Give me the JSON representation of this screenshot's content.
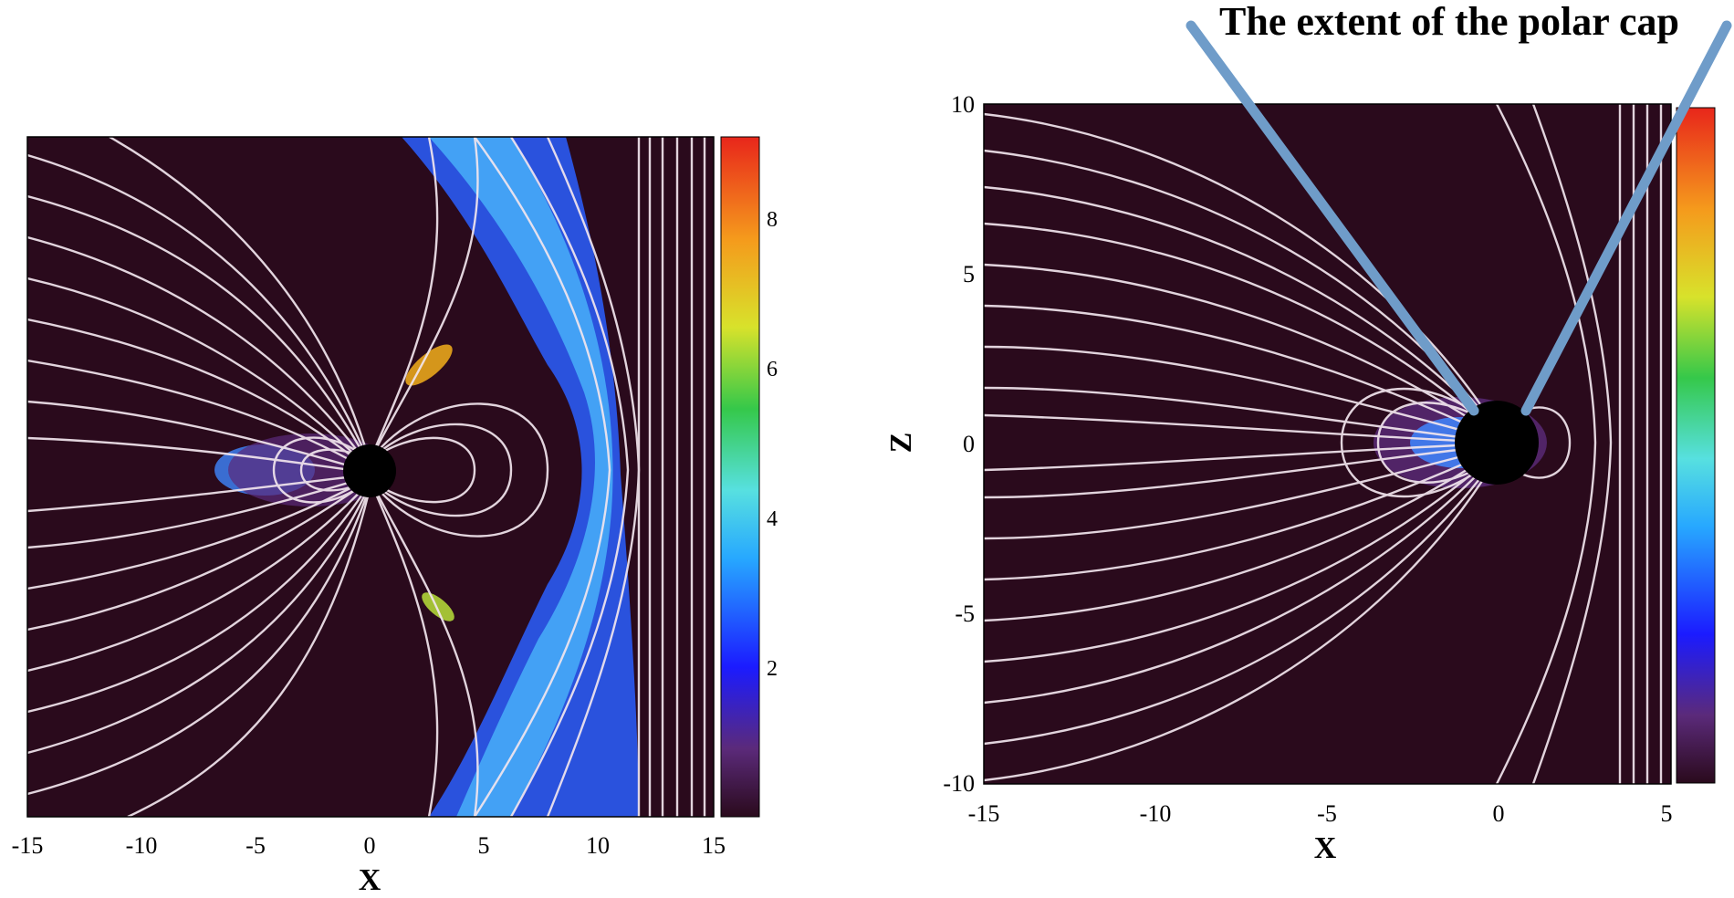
{
  "annotation": {
    "text": "The extent of the polar cap"
  },
  "left_panel": {
    "x_label": "X",
    "x_ticks": [
      "-15",
      "-10",
      "-5",
      "0",
      "5",
      "10",
      "15"
    ],
    "colorbar_ticks": [
      "2",
      "4",
      "6",
      "8"
    ]
  },
  "right_panel": {
    "x_label": "X",
    "y_label": "Z",
    "x_ticks": [
      "-15",
      "-10",
      "-5",
      "0",
      "5"
    ],
    "y_ticks": [
      "10",
      "5",
      "0",
      "-5",
      "-10"
    ]
  },
  "colors": {
    "background": "#2a0a1c",
    "streamline": "#f2e6ee",
    "planet": "#000000",
    "annotation_line": "#6f9cc9",
    "colorbar_stops": [
      "#2a0a1c",
      "#5b2a7a",
      "#1b1bff",
      "#27a8ff",
      "#57e0e0",
      "#35c84a",
      "#d8e22b",
      "#f59a1c",
      "#e8261b"
    ]
  }
}
